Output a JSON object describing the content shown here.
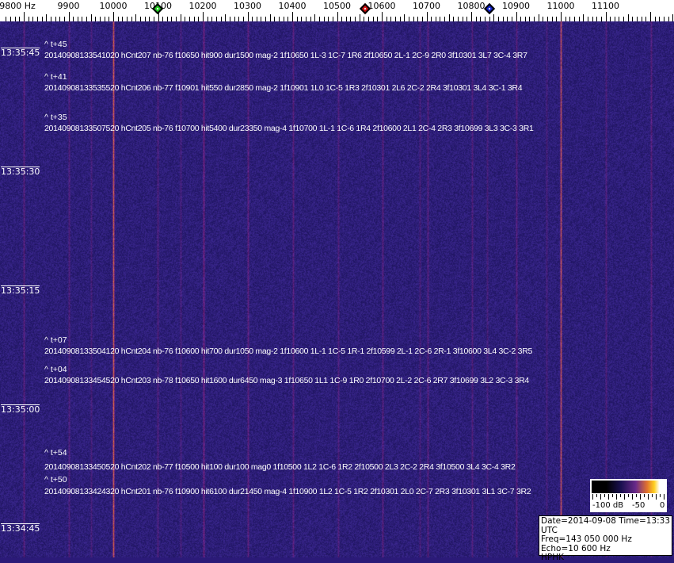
{
  "frequency_axis": {
    "unit": "Hz",
    "tick_labels": [
      {
        "value": 9800,
        "label": "9800 Hz"
      },
      {
        "value": 9900,
        "label": "9900"
      },
      {
        "value": 10000,
        "label": "10000"
      },
      {
        "value": 10100,
        "label": "10100"
      },
      {
        "value": 10200,
        "label": "10200"
      },
      {
        "value": 10300,
        "label": "10300"
      },
      {
        "value": 10400,
        "label": "10400"
      },
      {
        "value": 10500,
        "label": "10500"
      },
      {
        "value": 10600,
        "label": "10600"
      },
      {
        "value": 10700,
        "label": "10700"
      },
      {
        "value": 10800,
        "label": "10800"
      },
      {
        "value": 10900,
        "label": "10900"
      },
      {
        "value": 11000,
        "label": "11000"
      },
      {
        "value": 11100,
        "label": "11100"
      }
    ],
    "markers": [
      {
        "name": "green-marker",
        "freq": 10099,
        "color": "#22cc22"
      },
      {
        "name": "red-marker",
        "freq": 10563,
        "color": "#cc1111"
      },
      {
        "name": "blue-marker",
        "freq": 10841,
        "color": "#1122cc"
      }
    ]
  },
  "time_axis": {
    "labels": [
      "13:35:45",
      "13:35:30",
      "13:35:15",
      "13:35:00",
      "13:34:45"
    ]
  },
  "detections": [
    {
      "offset": "^ t+45",
      "text": "20140908133541020 hCnt207 nb-76 f10650 hit900 dur1500 mag-2 1f10650 1L-3 1C-7 1R6 2f10650 2L-1 2C-9 2R0 3f10301 3L7 3C-4 3R7"
    },
    {
      "offset": "^ t+41",
      "text": "20140908133535520 hCnt206 nb-77 f10901 hit550 dur2850 mag-2 1f10901 1L0 1C-5 1R3 2f10301 2L6 2C-2 2R4 3f10301 3L4 3C-1 3R4"
    },
    {
      "offset": "^ t+35",
      "text": "20140908133507520 hCnt205 nb-76 f10700 hit5400 dur23350 mag-4 1f10700 1L-1 1C-6 1R4 2f10600 2L1 2C-4 2R3 3f10699 3L3 3C-3 3R1"
    },
    {
      "offset": "^ t+07",
      "text": "20140908133504120 hCnt204 nb-76 f10600 hit700 dur1050 mag-2 1f10600 1L-1 1C-5 1R-1 2f10599 2L-1 2C-6 2R-1 3f10600 3L4 3C-2 3R5"
    },
    {
      "offset": "^ t+04",
      "text": "20140908133454520 hCnt203 nb-78 f10650 hit1600 dur6450 mag-3 1f10650 1L1 1C-9 1R0 2f10700 2L-2 2C-6 2R7 3f10699 3L2 3C-3 3R4"
    },
    {
      "offset": "^ t+54",
      "text": "20140908133450520 hCnt202 nb-77 f10500 hit100 dur100 mag0 1f10500 1L2 1C-6 1R2 2f10500 2L3 2C-2 2R4 3f10500 3L4 3C-4 3R2"
    },
    {
      "offset": "^ t+50",
      "text": "20140908133424320 hCnt201 nb-76 f10900 hit6100 dur21450 mag-4 1f10900 1L2 1C-5 1R2 2f10301 2L0 2C-7 2R3 3f10301 3L1 3C-7 3R2"
    }
  ],
  "color_legend": {
    "labels": [
      "-100 dB",
      "-50",
      "0"
    ]
  },
  "info_box": {
    "date_time": "Date=2014-09-08 Time=13:33 UTC",
    "freq": "Freq=143 050 000 Hz",
    "echo": "Echo=10 600 Hz",
    "station": "HPHK"
  }
}
